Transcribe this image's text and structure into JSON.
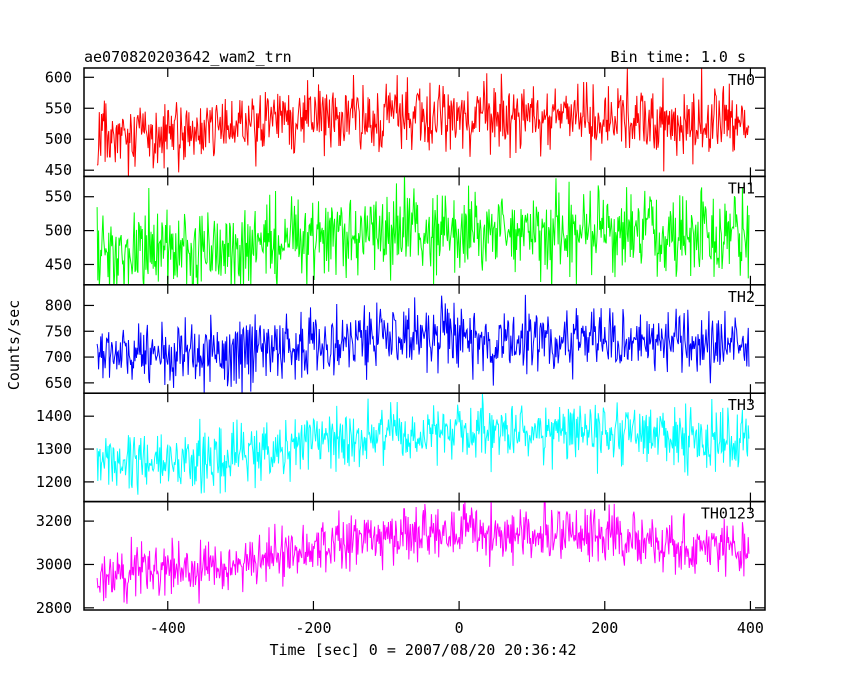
{
  "chart_data": {
    "type": "line",
    "title_left": "ae070820203642_wam2_trn",
    "title_right": "Bin time: 1.0 s",
    "ylabel": "Counts/sec",
    "xlabel": "Time [sec] 0 = 2007/08/20 20:36:42",
    "x": {
      "start": -497,
      "end": 398,
      "step": 1,
      "xlim": [
        -515,
        420
      ],
      "ticks": [
        -400,
        -200,
        0,
        200,
        400
      ]
    },
    "panels": [
      {
        "name": "TH0",
        "color": "#ff0000",
        "ylim": [
          440,
          615
        ],
        "ticks": [
          450,
          500,
          550,
          600
        ],
        "trend": [
          [
            -497,
            505
          ],
          [
            -300,
            520
          ],
          [
            -200,
            535
          ],
          [
            0,
            540
          ],
          [
            200,
            535
          ],
          [
            398,
            525
          ]
        ],
        "noise": 28
      },
      {
        "name": "TH1",
        "color": "#00ff00",
        "ylim": [
          420,
          580
        ],
        "ticks": [
          450,
          500,
          550
        ],
        "trend": [
          [
            -497,
            470
          ],
          [
            -300,
            480
          ],
          [
            -200,
            495
          ],
          [
            0,
            500
          ],
          [
            200,
            495
          ],
          [
            398,
            490
          ]
        ],
        "noise": 30
      },
      {
        "name": "TH2",
        "color": "#0000ff",
        "ylim": [
          630,
          840
        ],
        "ticks": [
          650,
          700,
          750,
          800
        ],
        "trend": [
          [
            -497,
            700
          ],
          [
            -300,
            710
          ],
          [
            -200,
            730
          ],
          [
            0,
            740
          ],
          [
            200,
            735
          ],
          [
            398,
            715
          ]
        ],
        "noise": 32
      },
      {
        "name": "TH3",
        "color": "#00ffff",
        "ylim": [
          1140,
          1470
        ],
        "ticks": [
          1200,
          1300,
          1400
        ],
        "trend": [
          [
            -497,
            1250
          ],
          [
            -300,
            1280
          ],
          [
            -200,
            1330
          ],
          [
            0,
            1350
          ],
          [
            200,
            1345
          ],
          [
            398,
            1320
          ]
        ],
        "noise": 45
      },
      {
        "name": "TH0123",
        "color": "#ff00ff",
        "ylim": [
          2790,
          3290
        ],
        "ticks": [
          2800,
          3000,
          3200
        ],
        "trend": [
          [
            -497,
            2950
          ],
          [
            -300,
            3000
          ],
          [
            -200,
            3100
          ],
          [
            0,
            3150
          ],
          [
            200,
            3120
          ],
          [
            398,
            3060
          ]
        ],
        "noise": 65
      }
    ]
  }
}
